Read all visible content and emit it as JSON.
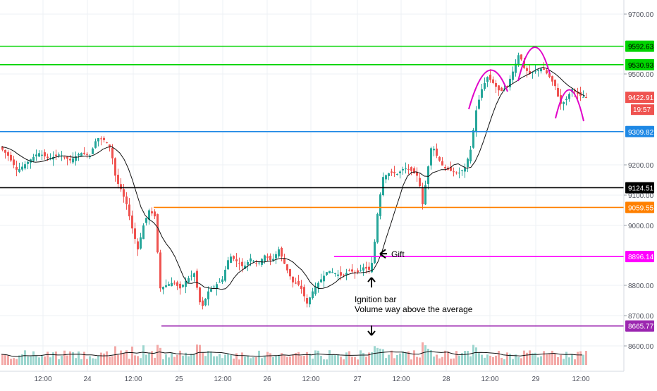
{
  "chart_data": {
    "type": "candlestick",
    "y_axis_ticks": [
      "9700.00",
      "9500.00",
      "9200.00",
      "9100.00",
      "9000.00",
      "8800.00",
      "8700.00",
      "8600.00"
    ],
    "x_axis_ticks": [
      "12:00",
      "24",
      "12:00",
      "25",
      "12:00",
      "26",
      "12:00",
      "27",
      "12:00",
      "28",
      "12:00",
      "29",
      "12:00"
    ],
    "ylim": [
      8530,
      9760
    ],
    "price_levels": [
      {
        "value": 9592.63,
        "label": "9592.63",
        "color": "#00d400"
      },
      {
        "value": 9530.93,
        "label": "9530.93",
        "color": "#00d400"
      },
      {
        "value": 9309.82,
        "label": "9309.82",
        "color": "#1e88e5"
      },
      {
        "value": 9124.51,
        "label": "9124.51",
        "color": "#000000"
      },
      {
        "value": 9059.55,
        "label": "9059.55",
        "color": "#ff8000"
      },
      {
        "value": 8896.14,
        "label": "8896.14",
        "color": "#ff00ff"
      },
      {
        "value": 8665.77,
        "label": "8665.77",
        "color": "#9c27b0"
      }
    ],
    "current_price": {
      "label": "9422.91",
      "countdown": "19:57",
      "color": "#ef5350"
    },
    "price_path": [
      [
        0,
        9260
      ],
      [
        12,
        9230
      ],
      [
        25,
        9180
      ],
      [
        40,
        9210
      ],
      [
        55,
        9240
      ],
      [
        70,
        9220
      ],
      [
        85,
        9235
      ],
      [
        100,
        9215
      ],
      [
        115,
        9240
      ],
      [
        128,
        9230
      ],
      [
        138,
        9290
      ],
      [
        150,
        9280
      ],
      [
        158,
        9250
      ],
      [
        165,
        9150
      ],
      [
        172,
        9120
      ],
      [
        180,
        9070
      ],
      [
        188,
        8990
      ],
      [
        196,
        8920
      ],
      [
        204,
        9000
      ],
      [
        212,
        9050
      ],
      [
        220,
        9030
      ],
      [
        228,
        8790
      ],
      [
        236,
        8800
      ],
      [
        246,
        8810
      ],
      [
        256,
        8790
      ],
      [
        266,
        8820
      ],
      [
        276,
        8840
      ],
      [
        286,
        8720
      ],
      [
        296,
        8780
      ],
      [
        306,
        8800
      ],
      [
        316,
        8820
      ],
      [
        326,
        8900
      ],
      [
        336,
        8880
      ],
      [
        346,
        8860
      ],
      [
        356,
        8890
      ],
      [
        366,
        8870
      ],
      [
        376,
        8900
      ],
      [
        386,
        8880
      ],
      [
        396,
        8920
      ],
      [
        406,
        8860
      ],
      [
        416,
        8810
      ],
      [
        426,
        8800
      ],
      [
        436,
        8740
      ],
      [
        446,
        8790
      ],
      [
        456,
        8820
      ],
      [
        466,
        8850
      ],
      [
        476,
        8840
      ],
      [
        486,
        8830
      ],
      [
        496,
        8850
      ],
      [
        506,
        8840
      ],
      [
        516,
        8860
      ],
      [
        526,
        8850
      ],
      [
        530,
        8900
      ],
      [
        537,
        9060
      ],
      [
        544,
        9160
      ],
      [
        554,
        9175
      ],
      [
        564,
        9170
      ],
      [
        574,
        9190
      ],
      [
        584,
        9180
      ],
      [
        594,
        9160
      ],
      [
        600,
        9070
      ],
      [
        607,
        9180
      ],
      [
        613,
        9270
      ],
      [
        620,
        9230
      ],
      [
        630,
        9190
      ],
      [
        640,
        9180
      ],
      [
        650,
        9170
      ],
      [
        660,
        9190
      ],
      [
        668,
        9250
      ],
      [
        676,
        9380
      ],
      [
        684,
        9450
      ],
      [
        692,
        9490
      ],
      [
        700,
        9470
      ],
      [
        710,
        9440
      ],
      [
        720,
        9460
      ],
      [
        730,
        9520
      ],
      [
        737,
        9570
      ],
      [
        744,
        9520
      ],
      [
        752,
        9500
      ],
      [
        760,
        9510
      ],
      [
        770,
        9520
      ],
      [
        780,
        9490
      ],
      [
        788,
        9460
      ],
      [
        795,
        9400
      ],
      [
        802,
        9410
      ],
      [
        812,
        9450
      ],
      [
        822,
        9430
      ],
      [
        830,
        9422
      ]
    ],
    "annotations": [
      {
        "text": "Gift"
      },
      {
        "text": "Ignition bar"
      },
      {
        "text": "Volume way above the average"
      }
    ]
  }
}
